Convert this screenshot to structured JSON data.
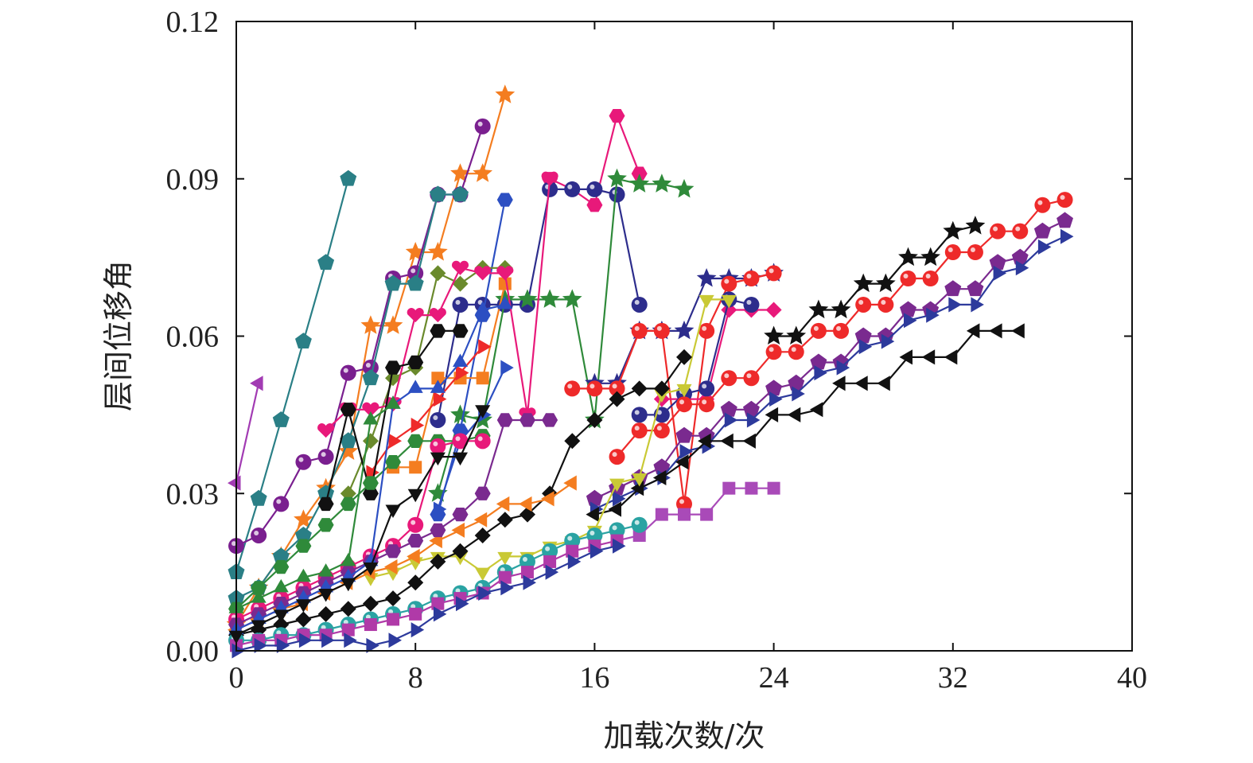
{
  "chart_data": {
    "type": "line",
    "title": "",
    "xlabel": "加载次数/次",
    "ylabel": "层间位移角",
    "xlim": [
      0,
      40
    ],
    "ylim": [
      0,
      0.12
    ],
    "x_ticks": [
      "0",
      "8",
      "16",
      "24",
      "32",
      "40"
    ],
    "y_ticks": [
      "0.00",
      "0.03",
      "0.06",
      "0.09",
      "0.12"
    ],
    "grid": false,
    "legend": "none",
    "series": [
      {
        "color": "#2a7f86",
        "marker": "pentagon",
        "x": [
          0,
          1,
          2,
          3,
          4,
          5
        ],
        "y": [
          0.015,
          0.029,
          0.044,
          0.059,
          0.074,
          0.09
        ]
      },
      {
        "color": "#a23bb3",
        "marker": "triangle-left",
        "x": [
          0,
          1
        ],
        "y": [
          0.032,
          0.051
        ]
      },
      {
        "color": "#f47d20",
        "marker": "star",
        "x": [
          0,
          1,
          2,
          3,
          4,
          5,
          6,
          7,
          8,
          9,
          10,
          11,
          12
        ],
        "y": [
          0.005,
          0.012,
          0.018,
          0.025,
          0.031,
          0.038,
          0.062,
          0.062,
          0.076,
          0.076,
          0.091,
          0.091,
          0.106
        ]
      },
      {
        "color": "#7a1f8f",
        "marker": "ball",
        "x": [
          0,
          1,
          2,
          3,
          4,
          5,
          6,
          7,
          8,
          9,
          10,
          11
        ],
        "y": [
          0.02,
          0.022,
          0.028,
          0.036,
          0.037,
          0.053,
          0.054,
          0.071,
          0.072,
          0.087,
          0.087,
          0.1
        ]
      },
      {
        "color": "#2a7f86",
        "marker": "pentagon",
        "x": [
          0,
          1,
          2,
          3,
          4,
          5,
          6,
          7,
          8,
          9,
          10
        ],
        "y": [
          0.01,
          0.012,
          0.018,
          0.022,
          0.03,
          0.04,
          0.052,
          0.07,
          0.07,
          0.087,
          0.087
        ]
      },
      {
        "color": "#e8197a",
        "marker": "hexagon",
        "x": [
          14,
          15,
          16,
          17,
          18
        ],
        "y": [
          0.09,
          0.088,
          0.085,
          0.102,
          0.091
        ]
      },
      {
        "color": "#2d2d8c",
        "marker": "ball",
        "x": [
          9,
          10,
          11,
          12,
          13,
          14,
          15,
          16,
          17,
          18
        ],
        "y": [
          0.044,
          0.066,
          0.066,
          0.066,
          0.066,
          0.088,
          0.088,
          0.088,
          0.087,
          0.066
        ]
      },
      {
        "color": "#2f8a3a",
        "marker": "star",
        "x": [
          9,
          10,
          11,
          12,
          13,
          14,
          15,
          16,
          17,
          18,
          19,
          20
        ],
        "y": [
          0.03,
          0.045,
          0.044,
          0.067,
          0.067,
          0.067,
          0.067,
          0.044,
          0.09,
          0.089,
          0.089,
          0.088
        ]
      },
      {
        "color": "#2c4fc2",
        "marker": "hexagon",
        "x": [
          9,
          10,
          11,
          12
        ],
        "y": [
          0.026,
          0.042,
          0.064,
          0.086
        ]
      },
      {
        "color": "#f47d20",
        "marker": "square",
        "x": [
          7,
          8,
          9,
          10,
          11,
          12
        ],
        "y": [
          0.035,
          0.035,
          0.052,
          0.052,
          0.052,
          0.07
        ]
      },
      {
        "color": "#6a8a2c",
        "marker": "diamond",
        "x": [
          5,
          6,
          7,
          8,
          9,
          10,
          11,
          12
        ],
        "y": [
          0.03,
          0.04,
          0.052,
          0.054,
          0.072,
          0.07,
          0.073,
          0.073
        ]
      },
      {
        "color": "#e8197a",
        "marker": "heart",
        "x": [
          4,
          5,
          6,
          7,
          8,
          9,
          10,
          11,
          12,
          13,
          14
        ],
        "y": [
          0.042,
          0.046,
          0.046,
          0.047,
          0.064,
          0.064,
          0.073,
          0.072,
          0.072,
          0.045,
          0.09
        ]
      },
      {
        "color": "#ee2a2a",
        "marker": "triangle-right",
        "x": [
          6,
          7,
          8,
          9,
          10,
          11
        ],
        "y": [
          0.034,
          0.04,
          0.043,
          0.048,
          0.053,
          0.058
        ]
      },
      {
        "color": "#111111",
        "marker": "hexagon",
        "x": [
          4,
          5,
          6,
          7,
          8,
          9,
          10
        ],
        "y": [
          0.028,
          0.046,
          0.03,
          0.054,
          0.055,
          0.061,
          0.061
        ]
      },
      {
        "color": "#2c4fc2",
        "marker": "triangle-right",
        "x": [
          9,
          10,
          11,
          12
        ],
        "y": [
          0.027,
          0.04,
          0.045,
          0.054
        ]
      },
      {
        "color": "#2d2d8c",
        "marker": "star",
        "x": [
          16,
          17,
          18,
          19,
          20,
          21,
          22,
          23,
          24
        ],
        "y": [
          0.051,
          0.051,
          0.061,
          0.061,
          0.061,
          0.071,
          0.071,
          0.071,
          0.072
        ]
      },
      {
        "color": "#ee2a2a",
        "marker": "ball",
        "x": [
          15,
          16,
          17,
          18,
          19,
          20,
          21,
          22,
          23,
          24
        ],
        "y": [
          0.05,
          0.05,
          0.05,
          0.061,
          0.061,
          0.028,
          0.061,
          0.07,
          0.071,
          0.072
        ]
      },
      {
        "color": "#e8197a",
        "marker": "diamond",
        "x": [
          19,
          20,
          21,
          22,
          23,
          24
        ],
        "y": [
          0.048,
          0.048,
          0.048,
          0.065,
          0.065,
          0.065
        ]
      },
      {
        "color": "#2d2d8c",
        "marker": "ball",
        "x": [
          18,
          19,
          20,
          21,
          22,
          23
        ],
        "y": [
          0.045,
          0.045,
          0.049,
          0.05,
          0.067,
          0.066
        ]
      },
      {
        "color": "#111111",
        "marker": "star",
        "x": [
          24,
          25,
          26,
          27,
          28,
          29,
          30,
          31,
          32,
          33
        ],
        "y": [
          0.06,
          0.06,
          0.065,
          0.065,
          0.07,
          0.07,
          0.075,
          0.075,
          0.08,
          0.081
        ]
      },
      {
        "color": "#ee2a2a",
        "marker": "ball",
        "x": [
          17,
          18,
          19,
          20,
          21,
          22,
          23,
          24,
          25,
          26,
          27,
          28,
          29,
          30,
          31,
          32,
          33,
          34,
          35,
          36,
          37
        ],
        "y": [
          0.037,
          0.042,
          0.042,
          0.047,
          0.047,
          0.052,
          0.052,
          0.057,
          0.057,
          0.061,
          0.061,
          0.066,
          0.066,
          0.071,
          0.071,
          0.076,
          0.076,
          0.08,
          0.08,
          0.085,
          0.086
        ]
      },
      {
        "color": "#7a2a8f",
        "marker": "pentagon",
        "x": [
          16,
          17,
          18,
          19,
          20,
          21,
          22,
          23,
          24,
          25,
          26,
          27,
          28,
          29,
          30,
          31,
          32,
          33,
          34,
          35,
          36,
          37
        ],
        "y": [
          0.029,
          0.031,
          0.033,
          0.035,
          0.041,
          0.041,
          0.046,
          0.046,
          0.05,
          0.051,
          0.055,
          0.055,
          0.06,
          0.06,
          0.065,
          0.065,
          0.069,
          0.069,
          0.074,
          0.075,
          0.08,
          0.082
        ]
      },
      {
        "color": "#2d3a9c",
        "marker": "triangle-right",
        "x": [
          16,
          17,
          18,
          19,
          20,
          21,
          22,
          23,
          24,
          25,
          26,
          27,
          28,
          29,
          30,
          31,
          32,
          33,
          34,
          35,
          36,
          37
        ],
        "y": [
          0.027,
          0.029,
          0.031,
          0.033,
          0.038,
          0.039,
          0.044,
          0.044,
          0.048,
          0.049,
          0.053,
          0.054,
          0.058,
          0.059,
          0.063,
          0.064,
          0.066,
          0.066,
          0.072,
          0.073,
          0.077,
          0.079
        ]
      },
      {
        "color": "#111111",
        "marker": "triangle-left",
        "x": [
          16,
          17,
          18,
          19,
          20,
          21,
          22,
          23,
          24,
          25,
          26,
          27,
          28,
          29,
          30,
          31,
          32,
          33,
          34,
          35
        ],
        "y": [
          0.026,
          0.027,
          0.031,
          0.033,
          0.036,
          0.04,
          0.04,
          0.04,
          0.045,
          0.045,
          0.046,
          0.051,
          0.051,
          0.051,
          0.056,
          0.056,
          0.056,
          0.061,
          0.061,
          0.061
        ]
      },
      {
        "color": "#a94ab8",
        "marker": "square",
        "x": [
          17,
          18,
          19,
          20,
          21,
          22,
          23,
          24
        ],
        "y": [
          0.021,
          0.022,
          0.026,
          0.026,
          0.026,
          0.031,
          0.031,
          0.031
        ]
      },
      {
        "color": "#c9c935",
        "marker": "triangle-down",
        "x": [
          6,
          7,
          8,
          9,
          10,
          11,
          12,
          13,
          14,
          15,
          16,
          17,
          18,
          19,
          20,
          21,
          22
        ],
        "y": [
          0.014,
          0.015,
          0.017,
          0.018,
          0.018,
          0.015,
          0.018,
          0.018,
          0.02,
          0.021,
          0.023,
          0.032,
          0.033,
          0.049,
          0.05,
          0.067,
          0.067
        ]
      },
      {
        "color": "#111111",
        "marker": "diamond",
        "x": [
          0,
          1,
          2,
          3,
          4,
          5,
          6,
          7,
          8,
          9,
          10,
          11,
          12,
          13,
          14,
          15,
          16,
          17,
          18,
          19,
          20
        ],
        "y": [
          0.003,
          0.004,
          0.005,
          0.006,
          0.007,
          0.008,
          0.009,
          0.01,
          0.013,
          0.017,
          0.019,
          0.022,
          0.025,
          0.026,
          0.03,
          0.04,
          0.044,
          0.048,
          0.05,
          0.05,
          0.056
        ]
      },
      {
        "color": "#f47d20",
        "marker": "triangle-left",
        "x": [
          0,
          1,
          2,
          3,
          4,
          5,
          6,
          7,
          8,
          9,
          10,
          11,
          12,
          13,
          14,
          15
        ],
        "y": [
          0.004,
          0.006,
          0.008,
          0.009,
          0.011,
          0.013,
          0.015,
          0.016,
          0.018,
          0.021,
          0.023,
          0.025,
          0.028,
          0.028,
          0.029,
          0.032
        ]
      },
      {
        "color": "#2aa3a3",
        "marker": "ball",
        "x": [
          0,
          1,
          2,
          3,
          4,
          5,
          6,
          7,
          8,
          9,
          10,
          11,
          12,
          13,
          14,
          15,
          16,
          17,
          18
        ],
        "y": [
          0.002,
          0.002,
          0.003,
          0.003,
          0.004,
          0.005,
          0.006,
          0.007,
          0.008,
          0.01,
          0.011,
          0.012,
          0.015,
          0.017,
          0.019,
          0.021,
          0.022,
          0.023,
          0.024
        ]
      },
      {
        "color": "#b03aa8",
        "marker": "square",
        "x": [
          0,
          1,
          2,
          3,
          4,
          5,
          6,
          7,
          8,
          9,
          10,
          11,
          12,
          13,
          14,
          15,
          16,
          17
        ],
        "y": [
          0.001,
          0.002,
          0.002,
          0.003,
          0.003,
          0.004,
          0.005,
          0.006,
          0.007,
          0.009,
          0.01,
          0.011,
          0.014,
          0.015,
          0.017,
          0.019,
          0.02,
          0.021
        ]
      },
      {
        "color": "#2d3a9c",
        "marker": "triangle-right",
        "x": [
          0,
          1,
          2,
          3,
          4,
          5,
          6,
          7,
          8,
          9,
          10,
          11,
          12,
          13,
          14,
          15,
          16,
          17
        ],
        "y": [
          0.0,
          0.001,
          0.001,
          0.002,
          0.002,
          0.002,
          0.001,
          0.002,
          0.004,
          0.007,
          0.009,
          0.011,
          0.012,
          0.013,
          0.015,
          0.017,
          0.019,
          0.02
        ]
      },
      {
        "color": "#2f8a3a",
        "marker": "hexagon",
        "x": [
          0,
          1,
          2,
          3,
          4,
          5,
          6,
          7,
          8,
          9,
          10,
          11
        ],
        "y": [
          0.008,
          0.012,
          0.016,
          0.02,
          0.024,
          0.028,
          0.032,
          0.036,
          0.04,
          0.04,
          0.04,
          0.041
        ]
      },
      {
        "color": "#e8197a",
        "marker": "ball",
        "x": [
          0,
          1,
          2,
          3,
          4,
          5,
          6,
          7,
          8,
          9,
          10,
          11
        ],
        "y": [
          0.006,
          0.008,
          0.01,
          0.012,
          0.014,
          0.016,
          0.018,
          0.02,
          0.024,
          0.039,
          0.04,
          0.04
        ]
      },
      {
        "color": "#7a2a8f",
        "marker": "hexagon",
        "x": [
          0,
          1,
          2,
          3,
          4,
          5,
          6,
          7,
          8,
          9,
          10,
          11,
          12,
          13,
          14
        ],
        "y": [
          0.005,
          0.007,
          0.009,
          0.011,
          0.013,
          0.015,
          0.017,
          0.019,
          0.021,
          0.023,
          0.026,
          0.03,
          0.044,
          0.044,
          0.044
        ]
      },
      {
        "color": "#2c4fc2",
        "marker": "triangle-up",
        "x": [
          0,
          1,
          2,
          3,
          4,
          5,
          6,
          7,
          8,
          9,
          10,
          11,
          12
        ],
        "y": [
          0.004,
          0.006,
          0.008,
          0.01,
          0.012,
          0.014,
          0.017,
          0.047,
          0.05,
          0.05,
          0.055,
          0.065,
          0.066
        ]
      },
      {
        "color": "#111111",
        "marker": "triangle-down",
        "x": [
          0,
          1,
          2,
          3,
          4,
          5,
          6,
          7,
          8,
          9,
          10,
          11
        ],
        "y": [
          0.003,
          0.005,
          0.007,
          0.009,
          0.011,
          0.013,
          0.016,
          0.027,
          0.03,
          0.037,
          0.037,
          0.046
        ]
      },
      {
        "color": "#2f8a3a",
        "marker": "triangle-up",
        "x": [
          0,
          1,
          2,
          3,
          4,
          5,
          6,
          7
        ],
        "y": [
          0.008,
          0.01,
          0.012,
          0.014,
          0.015,
          0.017,
          0.044,
          0.047
        ]
      }
    ]
  }
}
